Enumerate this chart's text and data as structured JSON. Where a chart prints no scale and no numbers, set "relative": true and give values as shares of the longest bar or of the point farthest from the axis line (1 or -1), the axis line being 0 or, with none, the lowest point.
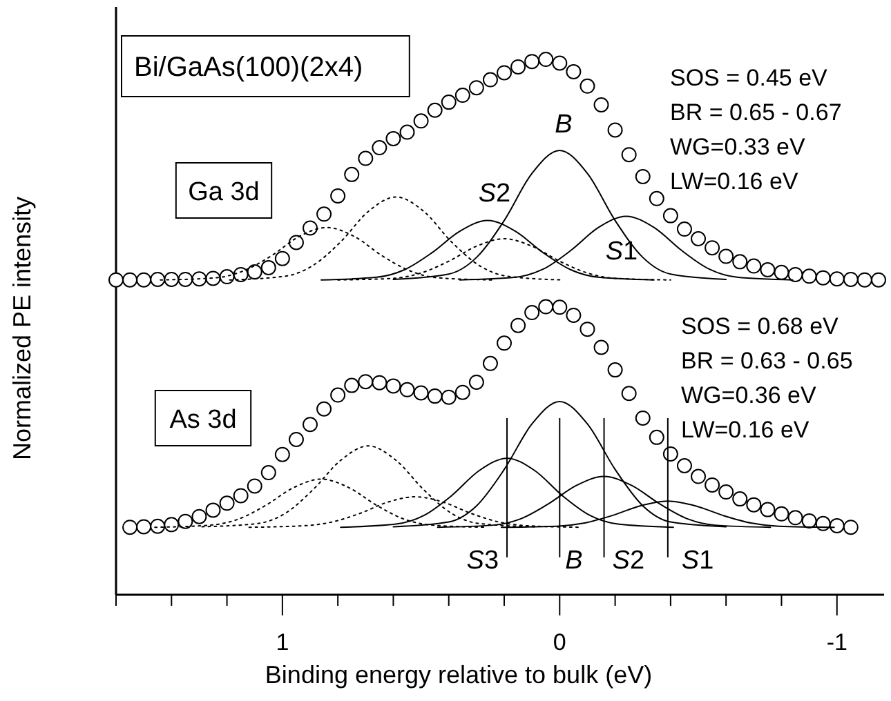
{
  "chart_data": {
    "type": "line",
    "title": "Bi/GaAs(100)(2x4)",
    "xlabel": "Binding energy relative to bulk (eV)",
    "ylabel": "Normalized PE intensity",
    "relative": true,
    "xlim": [
      1.6,
      -1.17
    ],
    "xticks": [
      {
        "value": 1.6,
        "label": null
      },
      {
        "value": 1.4,
        "label": null
      },
      {
        "value": 1.2,
        "label": null
      },
      1,
      {
        "value": 0.8,
        "label": null
      },
      {
        "value": 0.6,
        "label": null
      },
      {
        "value": 0.4,
        "label": null
      },
      {
        "value": 0.2,
        "label": null
      },
      0,
      {
        "value": -0.2,
        "label": null
      },
      {
        "value": -0.4,
        "label": null
      },
      {
        "value": -0.6,
        "label": null
      },
      {
        "value": -0.8,
        "label": null
      },
      -1
    ],
    "annotations": [
      "Ga 3d",
      "As 3d",
      "SOS = 0.45 eV",
      "BR = 0.65 - 0.67",
      "WG=0.33 eV",
      "LW=0.16 eV",
      "SOS = 0.68 eV",
      "BR = 0.63 - 0.65",
      "WG=0.36 eV",
      "LW=0.16 eV",
      "S2",
      "B",
      "S1"
    ],
    "ref_lines": [
      {
        "axis": "x",
        "value": 0.19,
        "label": "S3"
      },
      {
        "axis": "x",
        "value": 0,
        "label": "B"
      },
      {
        "axis": "x",
        "value": -0.16,
        "label": "S2"
      },
      {
        "axis": "x",
        "value": -0.39,
        "label": "S1"
      }
    ],
    "series": [
      {
        "type": "scatter",
        "marker": "circle",
        "color": "#000000",
        "x": [
          1.6,
          1.55,
          1.5,
          1.45,
          1.4,
          1.35,
          1.3,
          1.25,
          1.2,
          1.15,
          1.1,
          1.05,
          1.0,
          0.95,
          0.9,
          0.85,
          0.8,
          0.75,
          0.7,
          0.65,
          0.6,
          0.55,
          0.5,
          0.45,
          0.4,
          0.35,
          0.3,
          0.25,
          0.2,
          0.15,
          0.1,
          0.05,
          0,
          -0.05,
          -0.1,
          -0.15,
          -0.2,
          -0.25,
          -0.3,
          -0.35,
          -0.4,
          -0.45,
          -0.5,
          -0.55,
          -0.6,
          -0.65,
          -0.7,
          -0.75,
          -0.8,
          -0.85,
          -0.9,
          -0.95,
          -1.0,
          -1.05,
          -1.1,
          -1.15
        ],
        "values": [
          0.588,
          0.588,
          0.588,
          0.589,
          0.589,
          0.589,
          0.59,
          0.591,
          0.594,
          0.598,
          0.603,
          0.611,
          0.628,
          0.658,
          0.685,
          0.711,
          0.745,
          0.785,
          0.815,
          0.835,
          0.852,
          0.864,
          0.885,
          0.905,
          0.92,
          0.933,
          0.947,
          0.962,
          0.975,
          0.986,
          0.996,
          1.0,
          0.993,
          0.977,
          0.95,
          0.915,
          0.868,
          0.822,
          0.781,
          0.74,
          0.708,
          0.683,
          0.665,
          0.648,
          0.632,
          0.622,
          0.614,
          0.607,
          0.602,
          0.598,
          0.595,
          0.592,
          0.59,
          0.589,
          0.588,
          0.588
        ]
      },
      {
        "type": "line",
        "line_style": "solid",
        "color": "#000000",
        "x": [
          0.6,
          0.4,
          0.3,
          0.2,
          0.1,
          0,
          -0.1,
          -0.2,
          -0.3,
          -0.4,
          -0.6
        ],
        "values": [
          0.589,
          0.599,
          0.63,
          0.699,
          0.787,
          0.83,
          0.787,
          0.699,
          0.63,
          0.599,
          0.589
        ]
      },
      {
        "type": "line",
        "line_style": "solid",
        "color": "#000000",
        "x": [
          0.36,
          0.16,
          0.06,
          -0.04,
          -0.14,
          -0.24,
          -0.34,
          -0.44,
          -0.54,
          -0.64,
          -0.84
        ],
        "values": [
          0.588,
          0.593,
          0.608,
          0.643,
          0.686,
          0.707,
          0.686,
          0.643,
          0.608,
          0.593,
          0.588
        ]
      },
      {
        "type": "line",
        "line_style": "solid",
        "color": "#000000",
        "x": [
          0.86,
          0.66,
          0.56,
          0.46,
          0.36,
          0.26,
          0.16,
          0.06,
          -0.04,
          -0.14,
          -0.34
        ],
        "values": [
          0.588,
          0.593,
          0.607,
          0.639,
          0.679,
          0.699,
          0.679,
          0.639,
          0.607,
          0.593,
          0.588
        ]
      },
      {
        "type": "line",
        "line_style": "dotted",
        "color": "#000000",
        "x": [
          1.19,
          0.99,
          0.89,
          0.79,
          0.69,
          0.59,
          0.49,
          0.39,
          0.29,
          0.19,
          -0.01
        ],
        "values": [
          0.588,
          0.595,
          0.615,
          0.659,
          0.716,
          0.743,
          0.716,
          0.659,
          0.615,
          0.595,
          0.588
        ]
      },
      {
        "type": "line",
        "line_style": "dotted",
        "color": "#000000",
        "x": [
          1.44,
          1.24,
          1.14,
          1.04,
          0.94,
          0.84,
          0.74,
          0.64,
          0.54,
          0.44,
          0.24
        ],
        "values": [
          0.588,
          0.592,
          0.605,
          0.633,
          0.669,
          0.686,
          0.669,
          0.633,
          0.605,
          0.592,
          0.588
        ]
      },
      {
        "type": "line",
        "line_style": "dotted",
        "color": "#000000",
        "x": [
          0.8,
          0.6,
          0.5,
          0.4,
          0.3,
          0.2,
          0.1,
          0,
          -0.1,
          -0.2,
          -0.4
        ],
        "values": [
          0.588,
          0.591,
          0.601,
          0.623,
          0.651,
          0.665,
          0.651,
          0.623,
          0.601,
          0.591,
          0.588
        ]
      },
      {
        "type": "scatter",
        "marker": "circle",
        "color": "#000000",
        "x": [
          1.55,
          1.5,
          1.45,
          1.4,
          1.35,
          1.3,
          1.25,
          1.2,
          1.15,
          1.1,
          1.05,
          1.0,
          0.95,
          0.9,
          0.85,
          0.8,
          0.75,
          0.7,
          0.65,
          0.6,
          0.55,
          0.5,
          0.45,
          0.4,
          0.35,
          0.3,
          0.25,
          0.2,
          0.15,
          0.1,
          0.05,
          0,
          -0.05,
          -0.1,
          -0.15,
          -0.2,
          -0.25,
          -0.3,
          -0.35,
          -0.4,
          -0.45,
          -0.5,
          -0.55,
          -0.6,
          -0.65,
          -0.7,
          -0.75,
          -0.8,
          -0.85,
          -0.9,
          -0.95,
          -1.0,
          -1.05
        ],
        "values": [
          0.126,
          0.127,
          0.128,
          0.131,
          0.137,
          0.146,
          0.158,
          0.171,
          0.185,
          0.203,
          0.228,
          0.262,
          0.29,
          0.318,
          0.347,
          0.373,
          0.391,
          0.398,
          0.396,
          0.39,
          0.383,
          0.377,
          0.371,
          0.369,
          0.378,
          0.397,
          0.432,
          0.47,
          0.503,
          0.527,
          0.538,
          0.537,
          0.522,
          0.496,
          0.462,
          0.42,
          0.376,
          0.33,
          0.294,
          0.263,
          0.241,
          0.221,
          0.205,
          0.192,
          0.179,
          0.168,
          0.159,
          0.151,
          0.144,
          0.138,
          0.133,
          0.129,
          0.126
        ]
      },
      {
        "type": "line",
        "line_style": "solid",
        "color": "#000000",
        "x": [
          0.6,
          0.4,
          0.3,
          0.2,
          0.1,
          0,
          -0.1,
          -0.2,
          -0.3,
          -0.4,
          -0.6
        ],
        "values": [
          0.127,
          0.136,
          0.166,
          0.234,
          0.319,
          0.361,
          0.319,
          0.234,
          0.166,
          0.136,
          0.127
        ]
      },
      {
        "type": "line",
        "line_style": "solid",
        "color": "#000000",
        "x": [
          0.79,
          0.59,
          0.49,
          0.39,
          0.29,
          0.19,
          0.09,
          -0.01,
          -0.11,
          -0.21,
          -0.41
        ],
        "values": [
          0.126,
          0.132,
          0.148,
          0.185,
          0.232,
          0.255,
          0.232,
          0.185,
          0.148,
          0.132,
          0.126
        ]
      },
      {
        "type": "line",
        "line_style": "solid",
        "color": "#000000",
        "x": [
          0.44,
          0.24,
          0.14,
          0.04,
          -0.06,
          -0.16,
          -0.26,
          -0.36,
          -0.46,
          -0.56,
          -0.76
        ],
        "values": [
          0.126,
          0.13,
          0.142,
          0.17,
          0.204,
          0.221,
          0.204,
          0.17,
          0.142,
          0.13,
          0.126
        ]
      },
      {
        "type": "line",
        "line_style": "solid",
        "color": "#000000",
        "x": [
          0.21,
          0.01,
          -0.09,
          -0.19,
          -0.29,
          -0.39,
          -0.49,
          -0.59,
          -0.69,
          -0.79,
          -0.99
        ],
        "values": [
          0.126,
          0.128,
          0.134,
          0.148,
          0.166,
          0.175,
          0.166,
          0.148,
          0.134,
          0.128,
          0.126
        ]
      },
      {
        "type": "line",
        "line_style": "dotted",
        "color": "#000000",
        "x": [
          1.29,
          1.09,
          0.99,
          0.89,
          0.79,
          0.69,
          0.59,
          0.49,
          0.39,
          0.29,
          0.09
        ],
        "values": [
          0.127,
          0.133,
          0.152,
          0.196,
          0.251,
          0.278,
          0.251,
          0.196,
          0.152,
          0.133,
          0.127
        ]
      },
      {
        "type": "line",
        "line_style": "dotted",
        "color": "#000000",
        "x": [
          1.46,
          1.26,
          1.16,
          1.06,
          0.96,
          0.86,
          0.76,
          0.66,
          0.56,
          0.46,
          0.26
        ],
        "values": [
          0.126,
          0.13,
          0.141,
          0.167,
          0.2,
          0.216,
          0.2,
          0.167,
          0.141,
          0.13,
          0.126
        ]
      },
      {
        "type": "line",
        "line_style": "dotted",
        "color": "#000000",
        "x": [
          1.12,
          0.92,
          0.82,
          0.72,
          0.62,
          0.52,
          0.42,
          0.32,
          0.22,
          0.12,
          -0.08
        ],
        "values": [
          0.126,
          0.129,
          0.136,
          0.152,
          0.173,
          0.183,
          0.173,
          0.152,
          0.136,
          0.129,
          0.126
        ]
      }
    ]
  }
}
